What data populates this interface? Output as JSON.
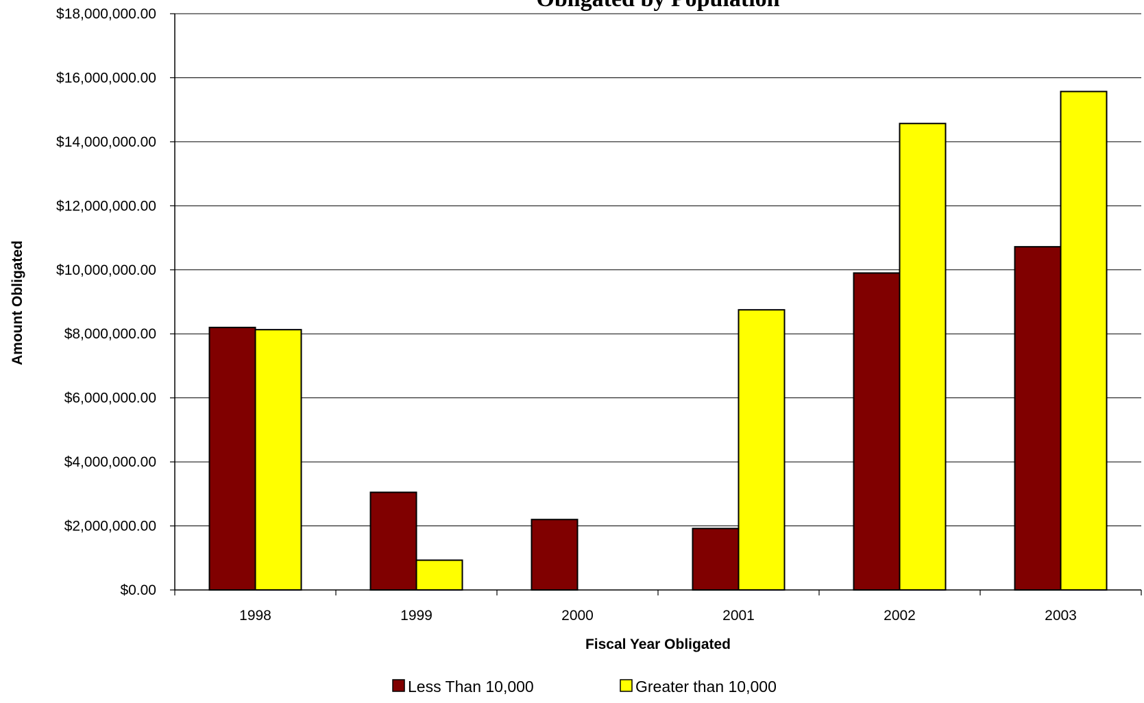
{
  "chart_data": {
    "type": "bar",
    "title": "Obligated by Population",
    "xlabel": "Fiscal Year Obligated",
    "ylabel": "Amount Obligated",
    "categories": [
      "1998",
      "1999",
      "2000",
      "2001",
      "2002",
      "2003"
    ],
    "series": [
      {
        "name": "Less Than 10,000",
        "color": "#800000",
        "values": [
          8200000,
          3050000,
          2200000,
          1920000,
          9900000,
          10720000
        ]
      },
      {
        "name": "Greater than 10,000",
        "color": "#ffff00",
        "values": [
          8130000,
          930000,
          0,
          8750000,
          14570000,
          15570000
        ]
      }
    ],
    "ylim": [
      0,
      18000000
    ],
    "yticks": [
      0,
      2000000,
      4000000,
      6000000,
      8000000,
      10000000,
      12000000,
      14000000,
      16000000,
      18000000
    ],
    "ytick_labels": [
      "$0.00",
      "$2,000,000.00",
      "$4,000,000.00",
      "$6,000,000.00",
      "$8,000,000.00",
      "$10,000,000.00",
      "$12,000,000.00",
      "$14,000,000.00",
      "$16,000,000.00",
      "$18,000,000.00"
    ],
    "grid": true,
    "legend_position": "bottom"
  }
}
